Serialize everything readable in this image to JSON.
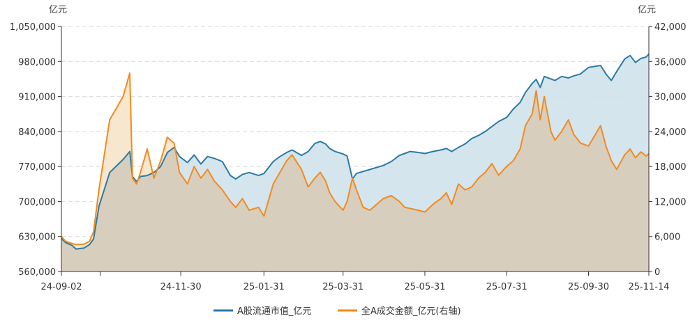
{
  "chart_data": {
    "type": "area",
    "left_axis": {
      "unit": "亿元",
      "ylim": [
        560000,
        1050000
      ],
      "ticks": [
        "1,050,000",
        "980,000",
        "910,000",
        "840,000",
        "770,000",
        "700,000",
        "630,000",
        "560,000"
      ]
    },
    "right_axis": {
      "unit": "亿元",
      "ylim": [
        0,
        42000
      ],
      "ticks": [
        "42,000",
        "36,000",
        "30,000",
        "24,000",
        "18,000",
        "12,000",
        "6,000",
        "0"
      ]
    },
    "x_axis": {
      "start": "24-09-02",
      "end": "25-11-14",
      "ticks": [
        "24-09-02",
        "24-11-30",
        "25-01-31",
        "25-03-31",
        "25-05-31",
        "25-07-31",
        "25-09-30",
        "25-11-14"
      ]
    },
    "grid": "horizontal dashed",
    "legend_position": "bottom-center",
    "colors": {
      "market_cap_line": "#2b7aa3",
      "market_cap_fill": "#cfe2ec",
      "turnover_line": "#f28a1f",
      "turnover_fill": "#f8e6cc",
      "overlap_fill": "#d8cebd"
    },
    "series": [
      {
        "name": "A股流通市值_亿元",
        "axis": "left",
        "points": [
          [
            "24-09-02",
            626000
          ],
          [
            "24-09-05",
            618000
          ],
          [
            "24-09-10",
            612000
          ],
          [
            "24-09-13",
            605000
          ],
          [
            "24-09-19",
            607000
          ],
          [
            "24-09-23",
            614000
          ],
          [
            "24-09-26",
            625000
          ],
          [
            "24-09-30",
            690000
          ],
          [
            "24-10-08",
            758000
          ],
          [
            "24-10-18",
            784000
          ],
          [
            "24-10-23",
            800000
          ],
          [
            "24-10-25",
            750000
          ],
          [
            "24-10-28",
            740000
          ],
          [
            "24-10-31",
            750000
          ],
          [
            "24-11-05",
            752000
          ],
          [
            "24-11-10",
            758000
          ],
          [
            "24-11-15",
            770000
          ],
          [
            "24-11-20",
            798000
          ],
          [
            "24-11-25",
            808000
          ],
          [
            "24-11-29",
            790000
          ],
          [
            "24-12-05",
            778000
          ],
          [
            "24-12-10",
            793000
          ],
          [
            "24-12-15",
            775000
          ],
          [
            "24-12-20",
            790000
          ],
          [
            "24-12-25",
            786000
          ],
          [
            "24-12-31",
            780000
          ],
          [
            "25-01-06",
            752000
          ],
          [
            "25-01-10",
            745000
          ],
          [
            "25-01-15",
            754000
          ],
          [
            "25-01-20",
            758000
          ],
          [
            "25-01-27",
            752000
          ],
          [
            "25-01-31",
            756000
          ],
          [
            "25-02-07",
            780000
          ],
          [
            "25-02-12",
            790000
          ],
          [
            "25-02-17",
            798000
          ],
          [
            "25-02-21",
            803000
          ],
          [
            "25-02-28",
            792000
          ],
          [
            "25-03-05",
            800000
          ],
          [
            "25-03-10",
            816000
          ],
          [
            "25-03-14",
            820000
          ],
          [
            "25-03-18",
            815000
          ],
          [
            "25-03-21",
            806000
          ],
          [
            "25-03-25",
            800000
          ],
          [
            "25-03-31",
            795000
          ],
          [
            "25-04-03",
            791000
          ],
          [
            "25-04-07",
            745000
          ],
          [
            "25-04-10",
            756000
          ],
          [
            "25-04-15",
            760000
          ],
          [
            "25-04-20",
            764000
          ],
          [
            "25-04-25",
            768000
          ],
          [
            "25-04-30",
            772000
          ],
          [
            "25-05-06",
            780000
          ],
          [
            "25-05-12",
            792000
          ],
          [
            "25-05-16",
            796000
          ],
          [
            "25-05-20",
            800000
          ],
          [
            "25-05-26",
            798000
          ],
          [
            "25-05-31",
            796000
          ],
          [
            "25-06-06",
            800000
          ],
          [
            "25-06-12",
            803000
          ],
          [
            "25-06-16",
            806000
          ],
          [
            "25-06-20",
            800000
          ],
          [
            "25-06-25",
            808000
          ],
          [
            "25-06-30",
            815000
          ],
          [
            "25-07-05",
            826000
          ],
          [
            "25-07-10",
            832000
          ],
          [
            "25-07-15",
            840000
          ],
          [
            "25-07-20",
            850000
          ],
          [
            "25-07-25",
            860000
          ],
          [
            "25-07-31",
            868000
          ],
          [
            "25-08-05",
            885000
          ],
          [
            "25-08-10",
            898000
          ],
          [
            "25-08-14",
            918000
          ],
          [
            "25-08-19",
            936000
          ],
          [
            "25-08-22",
            944000
          ],
          [
            "25-08-25",
            928000
          ],
          [
            "25-08-28",
            950000
          ],
          [
            "25-09-02",
            945000
          ],
          [
            "25-09-05",
            942000
          ],
          [
            "25-09-10",
            950000
          ],
          [
            "25-09-15",
            947000
          ],
          [
            "25-09-19",
            951000
          ],
          [
            "25-09-24",
            955000
          ],
          [
            "25-09-30",
            968000
          ],
          [
            "25-10-09",
            972000
          ],
          [
            "25-10-13",
            955000
          ],
          [
            "25-10-17",
            942000
          ],
          [
            "25-10-21",
            960000
          ],
          [
            "25-10-27",
            985000
          ],
          [
            "25-10-31",
            992000
          ],
          [
            "25-11-04",
            978000
          ],
          [
            "25-11-08",
            986000
          ],
          [
            "25-11-12",
            989000
          ],
          [
            "25-11-14",
            995000
          ]
        ]
      },
      {
        "name": "全A成交金额_亿元(右轴)",
        "axis": "right",
        "points": [
          [
            "24-09-02",
            6000
          ],
          [
            "24-09-05",
            5200
          ],
          [
            "24-09-10",
            4800
          ],
          [
            "24-09-13",
            4600
          ],
          [
            "24-09-19",
            4700
          ],
          [
            "24-09-23",
            5200
          ],
          [
            "24-09-26",
            6800
          ],
          [
            "24-09-30",
            14000
          ],
          [
            "24-10-08",
            26000
          ],
          [
            "24-10-18",
            30000
          ],
          [
            "24-10-23",
            34000
          ],
          [
            "24-10-25",
            16000
          ],
          [
            "24-10-28",
            15000
          ],
          [
            "24-10-31",
            17000
          ],
          [
            "24-11-05",
            21000
          ],
          [
            "24-11-10",
            16000
          ],
          [
            "24-11-15",
            19000
          ],
          [
            "24-11-20",
            23000
          ],
          [
            "24-11-25",
            22000
          ],
          [
            "24-11-29",
            17000
          ],
          [
            "24-12-05",
            15000
          ],
          [
            "24-12-10",
            18000
          ],
          [
            "24-12-15",
            16000
          ],
          [
            "24-12-20",
            17500
          ],
          [
            "24-12-25",
            15500
          ],
          [
            "24-12-31",
            14000
          ],
          [
            "25-01-06",
            12000
          ],
          [
            "25-01-10",
            11000
          ],
          [
            "25-01-15",
            12500
          ],
          [
            "25-01-20",
            10500
          ],
          [
            "25-01-27",
            11000
          ],
          [
            "25-01-31",
            9500
          ],
          [
            "25-02-07",
            15000
          ],
          [
            "25-02-12",
            17000
          ],
          [
            "25-02-17",
            19000
          ],
          [
            "25-02-21",
            20000
          ],
          [
            "25-02-28",
            17500
          ],
          [
            "25-03-05",
            14500
          ],
          [
            "25-03-10",
            16000
          ],
          [
            "25-03-14",
            17000
          ],
          [
            "25-03-18",
            15500
          ],
          [
            "25-03-21",
            13500
          ],
          [
            "25-03-25",
            12000
          ],
          [
            "25-03-31",
            10500
          ],
          [
            "25-04-03",
            12000
          ],
          [
            "25-04-07",
            16000
          ],
          [
            "25-04-10",
            14000
          ],
          [
            "25-04-15",
            11000
          ],
          [
            "25-04-20",
            10500
          ],
          [
            "25-04-25",
            11500
          ],
          [
            "25-04-30",
            12500
          ],
          [
            "25-05-06",
            13000
          ],
          [
            "25-05-12",
            12000
          ],
          [
            "25-05-16",
            11000
          ],
          [
            "25-05-20",
            10800
          ],
          [
            "25-05-26",
            10500
          ],
          [
            "25-05-31",
            10200
          ],
          [
            "25-06-06",
            11500
          ],
          [
            "25-06-12",
            12500
          ],
          [
            "25-06-16",
            13500
          ],
          [
            "25-06-20",
            11500
          ],
          [
            "25-06-25",
            15000
          ],
          [
            "25-06-30",
            14000
          ],
          [
            "25-07-05",
            14500
          ],
          [
            "25-07-10",
            16000
          ],
          [
            "25-07-15",
            17000
          ],
          [
            "25-07-20",
            18500
          ],
          [
            "25-07-25",
            16500
          ],
          [
            "25-07-31",
            18000
          ],
          [
            "25-08-05",
            19000
          ],
          [
            "25-08-10",
            21000
          ],
          [
            "25-08-14",
            25000
          ],
          [
            "25-08-19",
            27000
          ],
          [
            "25-08-22",
            31000
          ],
          [
            "25-08-25",
            26000
          ],
          [
            "25-08-28",
            30000
          ],
          [
            "25-09-02",
            24000
          ],
          [
            "25-09-05",
            22500
          ],
          [
            "25-09-10",
            24000
          ],
          [
            "25-09-15",
            26000
          ],
          [
            "25-09-19",
            23500
          ],
          [
            "25-09-24",
            22000
          ],
          [
            "25-09-30",
            21500
          ],
          [
            "25-10-09",
            25000
          ],
          [
            "25-10-13",
            21500
          ],
          [
            "25-10-17",
            19000
          ],
          [
            "25-10-21",
            17500
          ],
          [
            "25-10-27",
            20000
          ],
          [
            "25-10-31",
            21000
          ],
          [
            "25-11-04",
            19500
          ],
          [
            "25-11-08",
            20500
          ],
          [
            "25-11-12",
            19800
          ],
          [
            "25-11-14",
            20200
          ]
        ]
      }
    ]
  }
}
